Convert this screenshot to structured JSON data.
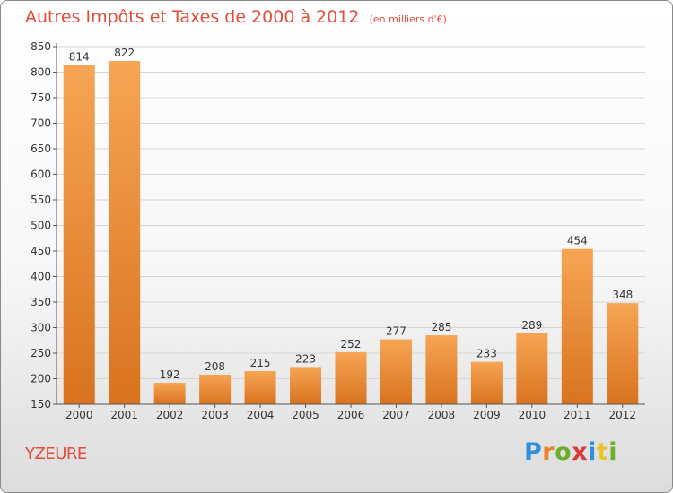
{
  "title": "Autres Impôts et Taxes de 2000 à 2012",
  "subtitle": "(en milliers d'€)",
  "location": "YZEURE",
  "logo": {
    "text": "Proxiti",
    "letters": [
      "P",
      "r",
      "o",
      "x",
      "i",
      "t",
      "i"
    ],
    "colors": [
      "#2f8fd8",
      "#e8852a",
      "#6cae2b",
      "#d93a3a",
      "#2f8fd8",
      "#e8c52a",
      "#6cae2b"
    ]
  },
  "colors": {
    "title": "#e04e39",
    "bar_top": "#f6a554",
    "bar_bottom": "#d9731f",
    "grid": "#d6d6d6",
    "axis": "#555555"
  },
  "chart_data": {
    "type": "bar",
    "title": "Autres Impôts et Taxes de 2000 à 2012",
    "subtitle": "(en milliers d'€)",
    "categories": [
      "2000",
      "2001",
      "2002",
      "2003",
      "2004",
      "2005",
      "2006",
      "2007",
      "2008",
      "2009",
      "2010",
      "2011",
      "2012"
    ],
    "values": [
      814,
      822,
      192,
      208,
      215,
      223,
      252,
      277,
      285,
      233,
      289,
      454,
      348
    ],
    "ylim": [
      150,
      850
    ],
    "yticks": [
      150,
      200,
      250,
      300,
      350,
      400,
      450,
      500,
      550,
      600,
      650,
      700,
      750,
      800,
      850
    ],
    "grid": true,
    "data_labels": true
  }
}
